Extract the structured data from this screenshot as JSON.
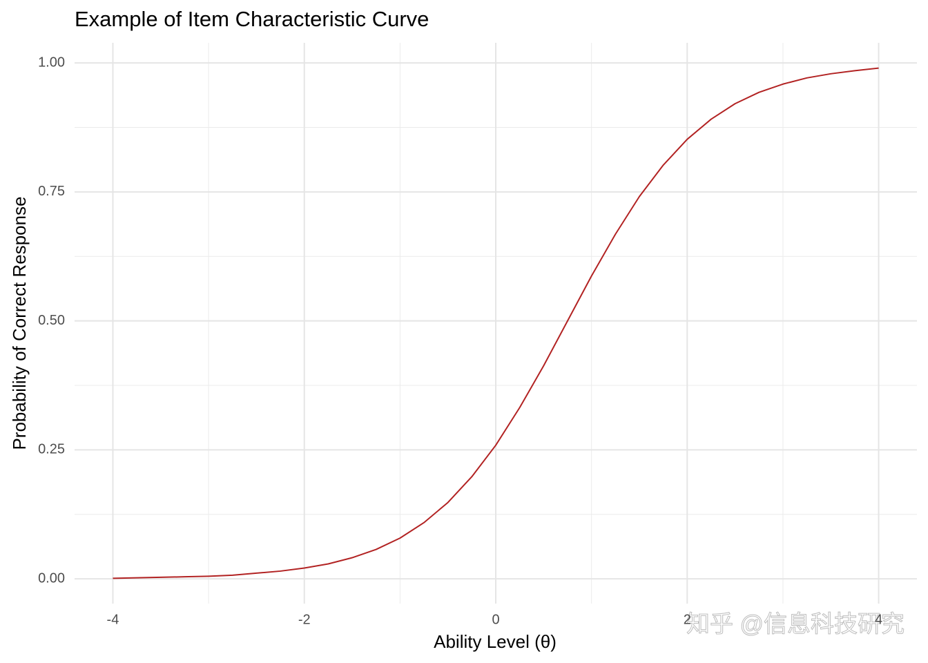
{
  "chart_data": {
    "type": "line",
    "title": "Example of Item Characteristic Curve",
    "x_label": "Ability Level (θ)",
    "y_label": "Probability of Correct Response",
    "watermark": "知乎 @信息科技研究",
    "x": [
      -4,
      -3.75,
      -3.5,
      -3.25,
      -3,
      -2.75,
      -2.5,
      -2.25,
      -2,
      -1.75,
      -1.5,
      -1.25,
      -1,
      -0.75,
      -0.5,
      -0.25,
      0,
      0.25,
      0.5,
      0.75,
      1,
      1.25,
      1.5,
      1.75,
      2,
      2.25,
      2.5,
      2.75,
      3,
      3.25,
      3.5,
      3.75,
      4
    ],
    "series": [
      {
        "color": "#b22222",
        "values": [
          0.001,
          0.002,
          0.003,
          0.004,
          0.005,
          0.007,
          0.011,
          0.015,
          0.021,
          0.029,
          0.041,
          0.057,
          0.079,
          0.109,
          0.148,
          0.198,
          0.259,
          0.332,
          0.413,
          0.5,
          0.587,
          0.668,
          0.741,
          0.802,
          0.852,
          0.891,
          0.921,
          0.943,
          0.959,
          0.971,
          0.979,
          0.985,
          0.99
        ]
      }
    ],
    "xlim": [
      -4.4,
      4.4
    ],
    "ylim": [
      -0.048,
      1.039
    ],
    "xticks": [
      -4,
      -2,
      0,
      2,
      4
    ],
    "yticks": [
      {
        "value": 0,
        "label": "0.00"
      },
      {
        "value": 0.25,
        "label": "0.25"
      },
      {
        "value": 0.5,
        "label": "0.50"
      },
      {
        "value": 0.75,
        "label": "0.75"
      },
      {
        "value": 1,
        "label": "1.00"
      }
    ],
    "grid": true
  }
}
